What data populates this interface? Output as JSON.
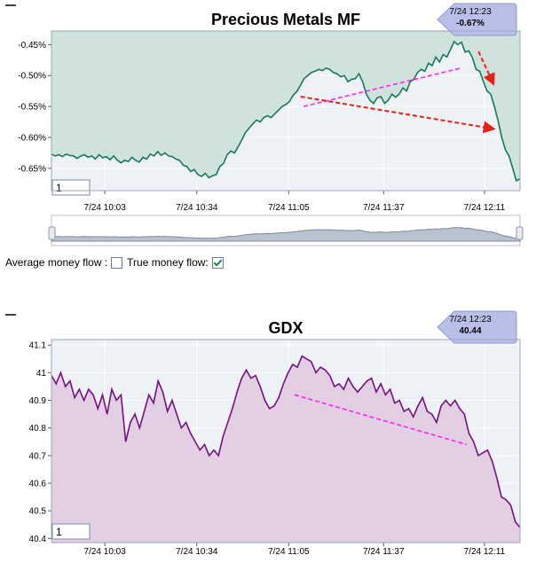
{
  "charts": [
    {
      "title": "Precious Metals MF",
      "badge_time": "7/24 12:23",
      "badge_value": "-0.67%",
      "input_value": "1"
    },
    {
      "title": "GDX",
      "badge_time": "7/24 12:23",
      "badge_value": "40.44",
      "input_value": "1"
    }
  ],
  "controls": {
    "average_label": "Average money flow :",
    "true_label": "True money flow:",
    "average_checked": false,
    "true_checked": true
  },
  "colors": {
    "mf_line": "#17795a",
    "mf_fill": "#cfe3dc",
    "gdx_line": "#74117f",
    "gdx_fill": "#e2cfe4",
    "trend_magenta": "#ff22ee",
    "trend_red": "#e8201a",
    "badge": "#b9bfe8"
  },
  "chart_data": [
    {
      "type": "area",
      "title": "Precious Metals MF",
      "x_tick_labels": [
        "7/24 10:03",
        "7/24 10:34",
        "7/24 11:05",
        "7/24 11:37",
        "7/24 12:11"
      ],
      "y_tick_labels": [
        "-0.45%",
        "-0.50%",
        "-0.55%",
        "-0.60%",
        "-0.65%"
      ],
      "ylim": [
        -0.686,
        -0.428
      ],
      "x_minutes_range": [
        "7/24 09:45",
        "7/24 12:23"
      ],
      "series": [
        {
          "values": [
            -0.627,
            -0.63,
            -0.628,
            -0.631,
            -0.627,
            -0.629,
            -0.63,
            -0.634,
            -0.63,
            -0.628,
            -0.632,
            -0.63,
            -0.635,
            -0.628,
            -0.633,
            -0.631,
            -0.636,
            -0.63,
            -0.637,
            -0.641,
            -0.637,
            -0.639,
            -0.632,
            -0.637,
            -0.64,
            -0.632,
            -0.635,
            -0.627,
            -0.63,
            -0.623,
            -0.629,
            -0.625,
            -0.63,
            -0.631,
            -0.635,
            -0.637,
            -0.645,
            -0.647,
            -0.655,
            -0.652,
            -0.66,
            -0.663,
            -0.658,
            -0.665,
            -0.662,
            -0.66,
            -0.647,
            -0.642,
            -0.628,
            -0.622,
            -0.625,
            -0.615,
            -0.604,
            -0.592,
            -0.585,
            -0.578,
            -0.572,
            -0.575,
            -0.568,
            -0.565,
            -0.568,
            -0.562,
            -0.556,
            -0.55,
            -0.547,
            -0.542,
            -0.532,
            -0.526,
            -0.516,
            -0.505,
            -0.5,
            -0.495,
            -0.493,
            -0.49,
            -0.492,
            -0.488,
            -0.49,
            -0.495,
            -0.497,
            -0.502,
            -0.5,
            -0.51,
            -0.506,
            -0.505,
            -0.497,
            -0.51,
            -0.53,
            -0.54,
            -0.545,
            -0.536,
            -0.534,
            -0.545,
            -0.54,
            -0.53,
            -0.535,
            -0.53,
            -0.52,
            -0.525,
            -0.51,
            -0.506,
            -0.495,
            -0.49,
            -0.493,
            -0.48,
            -0.484,
            -0.47,
            -0.478,
            -0.466,
            -0.47,
            -0.458,
            -0.445,
            -0.45,
            -0.446,
            -0.462,
            -0.46,
            -0.471,
            -0.49,
            -0.493,
            -0.51,
            -0.525,
            -0.53,
            -0.55,
            -0.573,
            -0.6,
            -0.62,
            -0.63,
            -0.65,
            -0.67,
            -0.667
          ]
        }
      ],
      "annotations": [
        {
          "type": "trend_line",
          "color": "magenta",
          "from": [
            "7/24 11:10",
            -0.55
          ],
          "to": [
            "7/24 12:03",
            -0.488
          ]
        },
        {
          "type": "arrow",
          "color": "red",
          "from": [
            "7/24 11:09",
            -0.534
          ],
          "to": [
            "7/24 12:14",
            -0.586
          ]
        },
        {
          "type": "arrow",
          "color": "red",
          "from": [
            "7/24 12:09",
            -0.461
          ],
          "to": [
            "7/24 12:14",
            -0.513
          ]
        }
      ],
      "legend": "none",
      "grid": true
    },
    {
      "type": "area",
      "title": "GDX",
      "x_tick_labels": [
        "7/24 10:03",
        "7/24 10:34",
        "7/24 11:05",
        "7/24 11:37",
        "7/24 12:11"
      ],
      "y_tick_labels": [
        "41.1",
        "41",
        "40.9",
        "40.8",
        "40.7",
        "40.6",
        "40.5",
        "40.4"
      ],
      "ylim": [
        40.385,
        41.12
      ],
      "x_minutes_range": [
        "7/24 09:45",
        "7/24 12:23"
      ],
      "series": [
        {
          "values": [
            40.99,
            40.96,
            41.0,
            40.95,
            40.97,
            40.91,
            40.94,
            40.9,
            40.94,
            40.92,
            40.87,
            40.92,
            40.85,
            40.94,
            40.9,
            40.92,
            40.75,
            40.82,
            40.85,
            40.8,
            40.86,
            40.92,
            40.89,
            40.97,
            40.93,
            40.86,
            40.9,
            40.85,
            40.8,
            40.82,
            40.78,
            40.75,
            40.72,
            40.74,
            40.7,
            40.72,
            40.7,
            40.77,
            40.82,
            40.87,
            40.93,
            40.98,
            41.01,
            40.98,
            40.99,
            40.95,
            40.9,
            40.87,
            40.88,
            40.91,
            40.96,
            41.0,
            41.03,
            41.02,
            41.06,
            41.05,
            41.04,
            41.0,
            41.02,
            41.01,
            40.99,
            40.95,
            40.96,
            40.94,
            40.98,
            40.95,
            40.93,
            40.95,
            40.97,
            40.98,
            40.93,
            40.96,
            40.92,
            40.94,
            40.89,
            40.9,
            40.86,
            40.87,
            40.84,
            40.88,
            40.91,
            40.86,
            40.85,
            40.82,
            40.88,
            40.9,
            40.88,
            40.9,
            40.87,
            40.85,
            40.78,
            40.75,
            40.7,
            40.71,
            40.72,
            40.68,
            40.62,
            40.55,
            40.54,
            40.52,
            40.46,
            40.44
          ]
        }
      ],
      "annotations": [
        {
          "type": "trend_line",
          "color": "magenta",
          "from": [
            "7/24 11:07",
            40.92
          ],
          "to": [
            "7/24 12:05",
            40.74
          ]
        }
      ],
      "legend": "none",
      "grid": true
    }
  ]
}
